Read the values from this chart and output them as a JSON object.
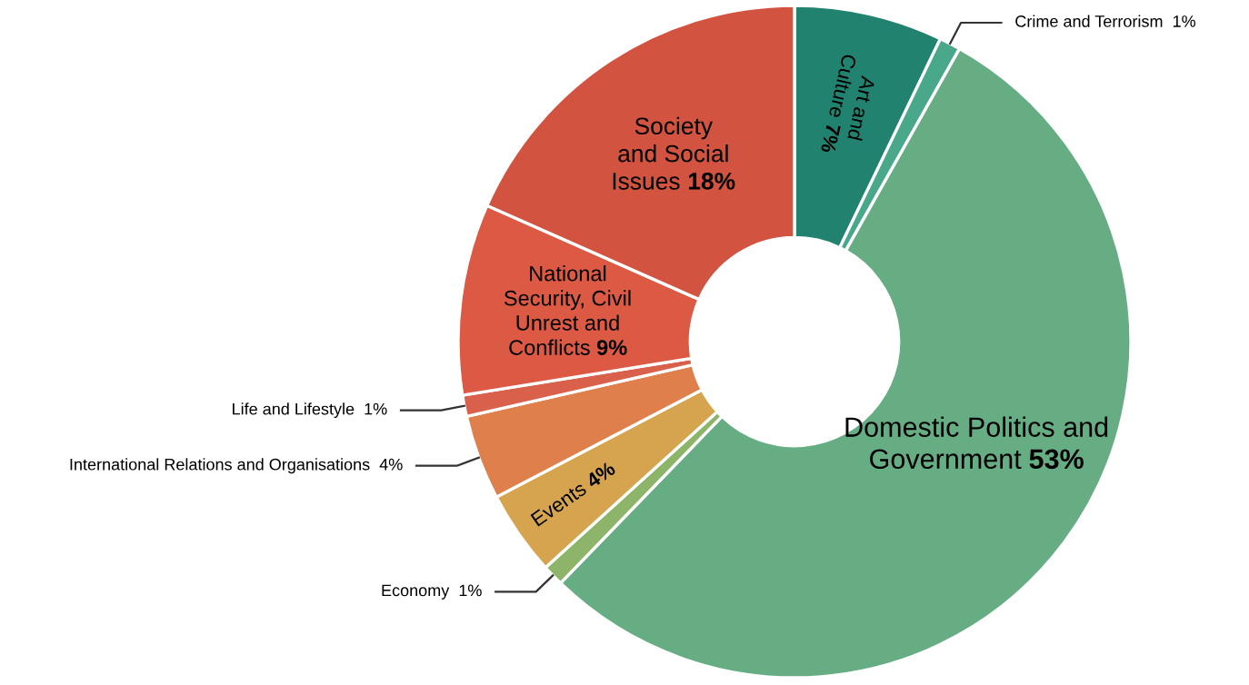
{
  "chart_data": {
    "type": "donut",
    "categories": [
      "Art and\nCulture",
      "Crime and Terrorism",
      "Domestic Politics and\nGovernment",
      "Economy",
      "Events",
      "International Relations and Organisations",
      "Life and Lifestyle",
      "National\nSecurity, Civil\nUnrest and\nConflicts",
      "Society\nand Social\nIssues"
    ],
    "values": [
      7,
      1,
      53,
      1,
      4,
      4,
      1,
      9,
      18
    ],
    "colors": [
      "#21826f",
      "#4aa88a",
      "#67ad84",
      "#8db56a",
      "#d6a44e",
      "#df7f4c",
      "#d9604a",
      "#dc5a44",
      "#d2533f"
    ],
    "value_labels": [
      "7%",
      "1%",
      "53%",
      "1%",
      "4%",
      "4%",
      "1%",
      "9%",
      "18%"
    ],
    "legend": false
  }
}
